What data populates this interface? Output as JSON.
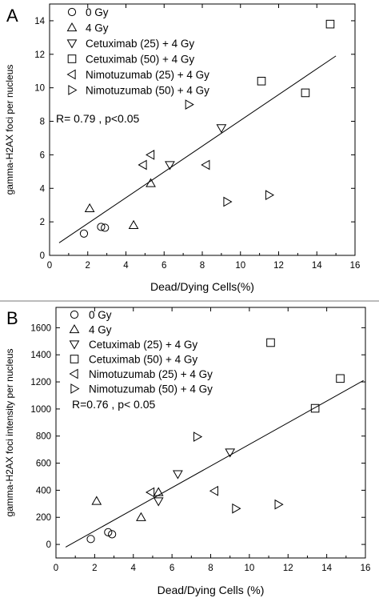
{
  "chart_data": [
    {
      "type": "scatter",
      "panel_label": "A",
      "xlabel": "Dead/Dying Cells(%)",
      "ylabel": "gamma-H2AX foci per nucleus",
      "xlim": [
        0,
        16
      ],
      "ylim": [
        0,
        15
      ],
      "xticks": [
        "0",
        "2",
        "4",
        "6",
        "8",
        "10",
        "12",
        "14",
        "16"
      ],
      "yticks": [
        "0",
        "2",
        "4",
        "6",
        "8",
        "10",
        "12",
        "14"
      ],
      "annotation": "R= 0.79 , p<0.05",
      "legend_position": "top-left",
      "series": [
        {
          "name": "0 Gy",
          "marker": "circle",
          "points": [
            [
              1.8,
              1.3
            ],
            [
              2.7,
              1.7
            ],
            [
              2.9,
              1.65
            ]
          ]
        },
        {
          "name": "4 Gy",
          "marker": "triangle-up",
          "points": [
            [
              2.1,
              2.8
            ],
            [
              4.4,
              1.8
            ],
            [
              5.3,
              4.3
            ]
          ]
        },
        {
          "name": "Cetuximab (25) + 4 Gy",
          "marker": "triangle-down",
          "points": [
            [
              6.3,
              5.4
            ],
            [
              9.0,
              7.6
            ]
          ]
        },
        {
          "name": "Cetuximab (50) + 4 Gy",
          "marker": "square",
          "points": [
            [
              11.1,
              10.4
            ],
            [
              13.4,
              9.7
            ],
            [
              14.7,
              13.8
            ]
          ]
        },
        {
          "name": "Nimotuzumab (25) + 4 Gy",
          "marker": "triangle-left",
          "points": [
            [
              4.9,
              5.4
            ],
            [
              5.3,
              6.0
            ],
            [
              8.2,
              5.4
            ]
          ]
        },
        {
          "name": "Nimotuzumab (50) + 4 Gy",
          "marker": "triangle-right",
          "points": [
            [
              7.3,
              9.0
            ],
            [
              9.3,
              3.2
            ],
            [
              11.5,
              3.6
            ]
          ]
        }
      ],
      "fit_line": {
        "x": [
          0.5,
          15.0
        ],
        "y": [
          0.75,
          11.9
        ]
      }
    },
    {
      "type": "scatter",
      "panel_label": "B",
      "xlabel": "Dead/Dying Cells (%)",
      "ylabel": "gamma-H2AX foci intensity per nucleus",
      "xlim": [
        0,
        16
      ],
      "ylim": [
        -100,
        1750
      ],
      "xticks": [
        "0",
        "2",
        "4",
        "6",
        "8",
        "10",
        "12",
        "14",
        "16"
      ],
      "yticks": [
        "0",
        "200",
        "400",
        "600",
        "800",
        "1000",
        "1200",
        "1400",
        "1600"
      ],
      "annotation": "R=0.76 , p< 0.05",
      "legend_position": "top-left",
      "series": [
        {
          "name": "0 Gy",
          "marker": "circle",
          "points": [
            [
              1.8,
              40
            ],
            [
              2.7,
              90
            ],
            [
              2.9,
              75
            ]
          ]
        },
        {
          "name": "4 Gy",
          "marker": "triangle-up",
          "points": [
            [
              2.1,
              320
            ],
            [
              4.4,
              200
            ],
            [
              5.3,
              385
            ]
          ]
        },
        {
          "name": "Cetuximab (25) + 4 Gy",
          "marker": "triangle-down",
          "points": [
            [
              6.3,
              520
            ],
            [
              9.0,
              680
            ],
            [
              5.3,
              320
            ]
          ]
        },
        {
          "name": "Cetuximab (50) + 4 Gy",
          "marker": "square",
          "points": [
            [
              11.1,
              1490
            ],
            [
              13.4,
              1005
            ],
            [
              14.7,
              1225
            ]
          ]
        },
        {
          "name": "Nimotuzumab (25) + 4 Gy",
          "marker": "triangle-left",
          "points": [
            [
              4.9,
              385
            ],
            [
              8.2,
              395
            ]
          ]
        },
        {
          "name": "Nimotuzumab (50) + 4 Gy",
          "marker": "triangle-right",
          "points": [
            [
              7.3,
              795
            ],
            [
              9.3,
              265
            ],
            [
              11.5,
              295
            ]
          ]
        }
      ],
      "fit_line": {
        "x": [
          0.5,
          15.9
        ],
        "y": [
          -20,
          1210
        ]
      }
    }
  ]
}
